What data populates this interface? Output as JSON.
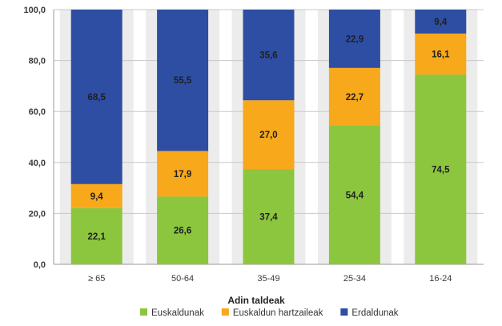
{
  "chart_data": {
    "type": "bar",
    "stacked": true,
    "xlabel": "Adin taldeak",
    "ylabel": "",
    "ylim": [
      0,
      100
    ],
    "yticks": [
      "0,0",
      "20,0",
      "40,0",
      "60,0",
      "80,0",
      "100,0"
    ],
    "categories": [
      "≥ 65",
      "50-64",
      "35-49",
      "25-34",
      "16-24"
    ],
    "series": [
      {
        "name": "Euskaldunak",
        "color": "#8cc63f",
        "values": [
          22.1,
          26.6,
          37.4,
          54.4,
          74.5
        ],
        "labels": [
          "22,1",
          "26,6",
          "37,4",
          "54,4",
          "74,5"
        ]
      },
      {
        "name": "Euskaldun hartzaileak",
        "color": "#f7a81b",
        "values": [
          9.4,
          17.9,
          27.0,
          22.7,
          16.1
        ],
        "labels": [
          "9,4",
          "17,9",
          "27,0",
          "22,7",
          "16,1"
        ]
      },
      {
        "name": "Erdaldunak",
        "color": "#2e4ea3",
        "values": [
          68.5,
          55.5,
          35.6,
          22.9,
          9.4
        ],
        "labels": [
          "68,5",
          "55,5",
          "35,6",
          "22,9",
          "9,4"
        ]
      }
    ],
    "grid": true,
    "legend_position": "bottom"
  }
}
